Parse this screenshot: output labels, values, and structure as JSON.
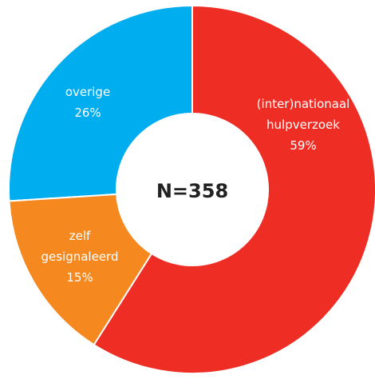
{
  "chart_data": {
    "type": "donut",
    "center_label": "N=358",
    "categories": [
      "(inter)nationaal hulpverzoek",
      "zelf gesignaleerd",
      "overige"
    ],
    "values": [
      59,
      15,
      26
    ],
    "value_labels": [
      "59%",
      "15%",
      "26%"
    ],
    "colors": [
      "#ee2d24",
      "#f5891f",
      "#00aeef"
    ]
  }
}
